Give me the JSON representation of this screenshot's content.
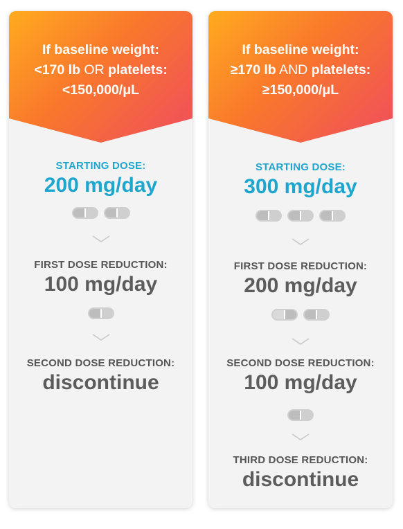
{
  "left": {
    "banner": {
      "line1": "If baseline weight:",
      "line2_pre": "<170 lb",
      "line2_mid": " OR ",
      "line2_post": "platelets:",
      "line3": "<150,000/μL"
    },
    "steps": [
      {
        "label": "STARTING DOSE:",
        "value": "200 mg/day",
        "pills": 2
      },
      {
        "label": "FIRST DOSE REDUCTION:",
        "value": "100 mg/day",
        "pills": 1
      },
      {
        "label": "SECOND DOSE REDUCTION:",
        "value": "discontinue",
        "pills": 0
      }
    ]
  },
  "right": {
    "banner": {
      "line1": "If baseline weight:",
      "line2_pre": "≥170 lb",
      "line2_mid": " AND ",
      "line2_post": "platelets:",
      "line3": "≥150,000/μL"
    },
    "steps": [
      {
        "label": "STARTING DOSE:",
        "value": "300 mg/day",
        "pills": 3
      },
      {
        "label": "FIRST DOSE REDUCTION:",
        "value": "200 mg/day",
        "pills": 2
      },
      {
        "label": "SECOND DOSE REDUCTION:",
        "value": "100 mg/day",
        "pills": 1
      },
      {
        "label": "THIRD DOSE REDUCTION:",
        "value": "discontinue",
        "pills": 0
      }
    ]
  },
  "colors": {
    "accent": "#1ea6cf",
    "text": "#5c5c5c",
    "banner_start": "#ffab1f",
    "banner_end": "#ef4d5e",
    "card": "#f3f3f3"
  }
}
